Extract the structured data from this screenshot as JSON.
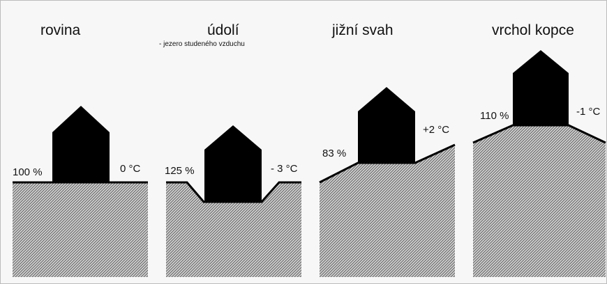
{
  "panels": [
    {
      "title": "rovina",
      "percent": "100 %",
      "temperature": "0 °C"
    },
    {
      "title": "údolí",
      "subtitle": "- jezero studeného vzduchu",
      "percent": "125 %",
      "temperature": "- 3 °C"
    },
    {
      "title": "jižní svah",
      "percent": "83 %",
      "temperature": "+2 °C"
    },
    {
      "title": "vrchol kopce",
      "percent": "110 %",
      "temperature": "-1 °C"
    }
  ]
}
